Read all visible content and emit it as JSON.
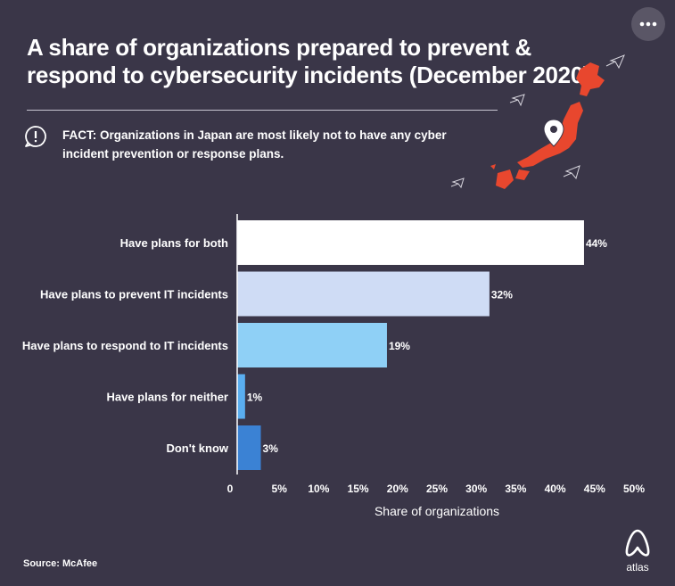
{
  "title": "A share of organizations prepared to prevent & respond to cybersecurity incidents (December 2020)",
  "fact": {
    "label": "FACT:",
    "text": "Organizations in Japan are most likely not to have any cyber incident prevention or response plans."
  },
  "source": "Source: McAfee",
  "logo_text": "atlas",
  "colors": {
    "background": "#3a3648"
  },
  "icons": [
    "more-options-icon",
    "info-icon",
    "japan-map-icon",
    "location-pin-icon",
    "atlas-logo-icon"
  ],
  "chart_data": {
    "type": "bar",
    "orientation": "horizontal",
    "categories": [
      "Have plans for both",
      "Have plans to prevent IT incidents",
      "Have plans to respond to IT incidents",
      "Have plans for neither",
      "Don't know"
    ],
    "values": [
      44,
      32,
      19,
      1,
      3
    ],
    "data_labels": [
      "44%",
      "32%",
      "19%",
      "1%",
      "3%"
    ],
    "colors": [
      "#ffffff",
      "#cfdcf5",
      "#8fd0f6",
      "#5aaef0",
      "#3b82d4"
    ],
    "xlabel": "Share of organizations",
    "xlim": [
      0,
      50
    ],
    "ticks": [
      "0",
      "5%",
      "10%",
      "15%",
      "20%",
      "25%",
      "30%",
      "35%",
      "40%",
      "45%",
      "50%"
    ],
    "grid": false,
    "legend": "none"
  }
}
